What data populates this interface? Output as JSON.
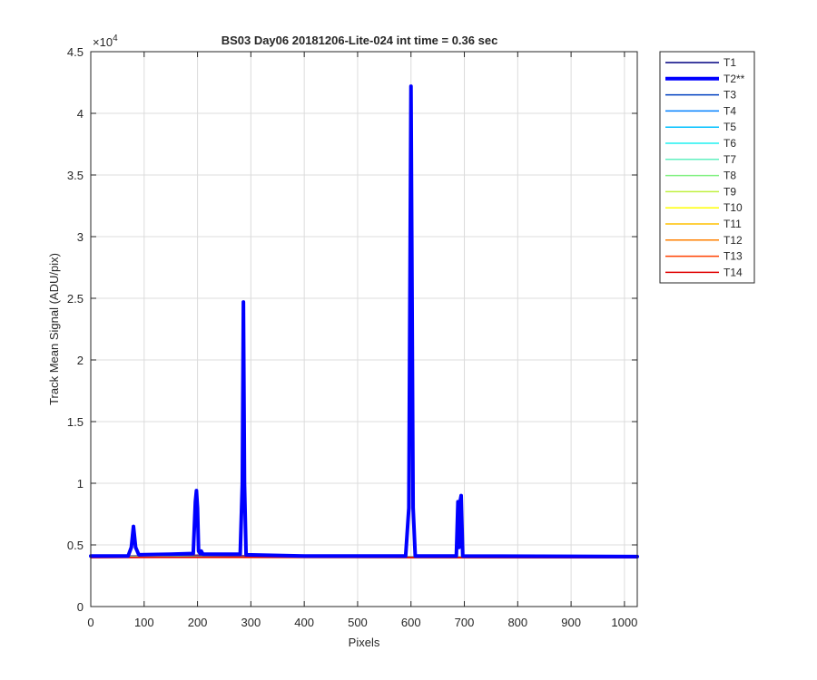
{
  "chart_data": {
    "type": "line",
    "title": "BS03 Day06 20181206-Lite-024 int time = 0.36 sec",
    "xlabel": "Pixels",
    "ylabel": "Track Mean Signal (ADU/pix)",
    "xlim": [
      0,
      1024
    ],
    "ylim": [
      0,
      45000
    ],
    "y_exponent_label": "×10",
    "y_exponent_power": "4",
    "x_ticks": [
      0,
      100,
      200,
      300,
      400,
      500,
      600,
      700,
      800,
      900,
      1000
    ],
    "x_tick_labels": [
      "0",
      "100",
      "200",
      "300",
      "400",
      "500",
      "600",
      "700",
      "800",
      "900",
      "1000"
    ],
    "y_ticks": [
      0,
      5000,
      10000,
      15000,
      20000,
      25000,
      30000,
      35000,
      40000,
      45000
    ],
    "y_tick_labels": [
      "0",
      "0.5",
      "1",
      "1.5",
      "2",
      "2.5",
      "3",
      "3.5",
      "4",
      "4.5"
    ],
    "grid": true,
    "legend_position": "outside-top-right",
    "baseline": [
      [
        0,
        4050
      ],
      [
        100,
        4100
      ],
      [
        200,
        4150
      ],
      [
        300,
        4100
      ],
      [
        400,
        4050
      ],
      [
        500,
        4030
      ],
      [
        600,
        4000
      ],
      [
        700,
        4000
      ],
      [
        800,
        4000
      ],
      [
        900,
        4000
      ],
      [
        1024,
        4000
      ]
    ],
    "series": [
      {
        "name": "T1",
        "color": "#000080",
        "width": 1.5,
        "values": [
          [
            0,
            4000
          ],
          [
            1024,
            3960
          ]
        ]
      },
      {
        "name": "T2**",
        "color": "#0000ff",
        "width": 4,
        "values": [
          [
            0,
            4100
          ],
          [
            70,
            4100
          ],
          [
            76,
            4800
          ],
          [
            80,
            6500
          ],
          [
            84,
            4800
          ],
          [
            90,
            4200
          ],
          [
            150,
            4250
          ],
          [
            192,
            4300
          ],
          [
            196,
            8500
          ],
          [
            198,
            9400
          ],
          [
            200,
            8000
          ],
          [
            202,
            4500
          ],
          [
            205,
            4300
          ],
          [
            207,
            4500
          ],
          [
            210,
            4250
          ],
          [
            280,
            4250
          ],
          [
            284,
            10000
          ],
          [
            286,
            24700
          ],
          [
            288,
            10000
          ],
          [
            291,
            4200
          ],
          [
            400,
            4100
          ],
          [
            590,
            4100
          ],
          [
            596,
            8000
          ],
          [
            600,
            42200
          ],
          [
            604,
            8000
          ],
          [
            608,
            4100
          ],
          [
            685,
            4100
          ],
          [
            688,
            8500
          ],
          [
            690,
            4800
          ],
          [
            692,
            8500
          ],
          [
            694,
            9000
          ],
          [
            697,
            4100
          ],
          [
            1024,
            4050
          ]
        ]
      },
      {
        "name": "T3",
        "color": "#0040c0",
        "width": 1.5,
        "values": [
          [
            0,
            4080
          ],
          [
            1024,
            4020
          ]
        ]
      },
      {
        "name": "T4",
        "color": "#0080ff",
        "width": 1.5,
        "values": [
          [
            0,
            4060
          ],
          [
            1024,
            4010
          ]
        ]
      },
      {
        "name": "T5",
        "color": "#00c0ff",
        "width": 1.5,
        "values": [
          [
            0,
            4050
          ],
          [
            1024,
            4000
          ]
        ]
      },
      {
        "name": "T6",
        "color": "#20f0f0",
        "width": 1.5,
        "values": [
          [
            0,
            4040
          ],
          [
            1024,
            4000
          ]
        ]
      },
      {
        "name": "T7",
        "color": "#60f0c0",
        "width": 1.5,
        "values": [
          [
            0,
            4030
          ],
          [
            1024,
            3990
          ]
        ]
      },
      {
        "name": "T8",
        "color": "#80f080",
        "width": 1.5,
        "values": [
          [
            0,
            4030
          ],
          [
            1024,
            3990
          ]
        ]
      },
      {
        "name": "T9",
        "color": "#c0f040",
        "width": 1.5,
        "values": [
          [
            0,
            4020
          ],
          [
            1024,
            3990
          ]
        ]
      },
      {
        "name": "T10",
        "color": "#ffff00",
        "width": 1.5,
        "values": [
          [
            0,
            4020
          ],
          [
            1024,
            3980
          ]
        ]
      },
      {
        "name": "T11",
        "color": "#ffc000",
        "width": 1.5,
        "values": [
          [
            0,
            4010
          ],
          [
            1024,
            3980
          ]
        ]
      },
      {
        "name": "T12",
        "color": "#ff8000",
        "width": 1.5,
        "values": [
          [
            0,
            4000
          ],
          [
            1024,
            3970
          ]
        ]
      },
      {
        "name": "T13",
        "color": "#ff4000",
        "width": 1.5,
        "values": [
          [
            0,
            3990
          ],
          [
            1024,
            3960
          ]
        ]
      },
      {
        "name": "T14",
        "color": "#e00000",
        "width": 1.5,
        "values": [
          [
            0,
            3960
          ],
          [
            300,
            4020
          ],
          [
            1024,
            3950
          ]
        ]
      }
    ]
  }
}
